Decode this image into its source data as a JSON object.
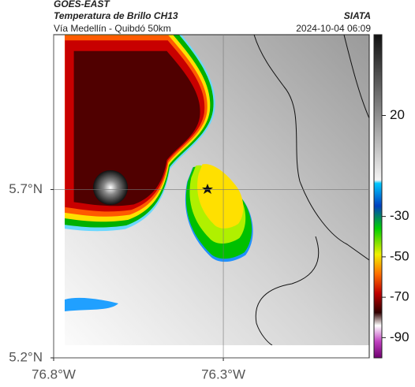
{
  "header": {
    "source": "GOES-EAST",
    "title": "Temperatura de Brillo CH13",
    "subtitle": "Vía Medellín - Quibdó 50km",
    "brand": "SIATA",
    "timestamp": "2024-10-04 06:09"
  },
  "map": {
    "xlim": [
      -76.8,
      -75.87
    ],
    "ylim": [
      5.2,
      6.16
    ],
    "xticks": [
      {
        "value": -76.8,
        "label": "76.8°W"
      },
      {
        "value": -76.3,
        "label": "76.3°W"
      }
    ],
    "yticks": [
      {
        "value": 5.2,
        "label": "5.2°N"
      },
      {
        "value": 5.7,
        "label": "5.7°N"
      }
    ],
    "grid": true
  },
  "colorbar": {
    "clim": [
      60,
      -100
    ],
    "ticks": [
      20,
      -30,
      -50,
      -70,
      -90
    ]
  }
}
